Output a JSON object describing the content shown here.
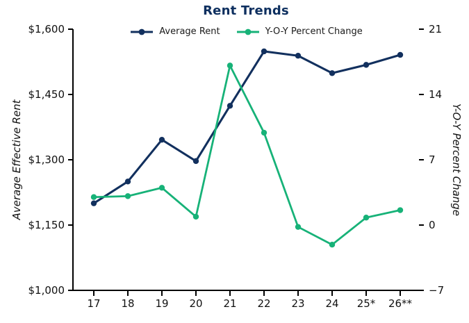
{
  "chart_data": {
    "type": "line",
    "title": "Rent Trends",
    "categories": [
      "17",
      "18",
      "19",
      "20",
      "21",
      "22",
      "23",
      "24",
      "25*",
      "26**"
    ],
    "series": [
      {
        "name": "Average Rent",
        "axis": "left",
        "color": "#12305e",
        "values": [
          1200,
          1250,
          1346,
          1297,
          1424,
          1549,
          1539,
          1499,
          1518,
          1541
        ]
      },
      {
        "name": "Y-O-Y Percent Change",
        "axis": "right",
        "color": "#17b278",
        "values": [
          3.0,
          3.1,
          4.0,
          0.9,
          17.1,
          9.9,
          -0.2,
          -2.1,
          0.8,
          1.6
        ]
      }
    ],
    "left_axis": {
      "label": "Average Effective Rent",
      "range": [
        1000,
        1600
      ],
      "ticks": [
        {
          "value": 1600,
          "label": "$1,600"
        },
        {
          "value": 1450,
          "label": "$1,450"
        },
        {
          "value": 1300,
          "label": "$1,300"
        },
        {
          "value": 1150,
          "label": "$1,150"
        },
        {
          "value": 1000,
          "label": "$1,000"
        }
      ]
    },
    "right_axis": {
      "label": "Y-O-Y Percent Change",
      "range": [
        -7,
        21
      ],
      "ticks": [
        {
          "value": 21,
          "label": "21"
        },
        {
          "value": 14,
          "label": "14"
        },
        {
          "value": 7,
          "label": "7"
        },
        {
          "value": 0,
          "label": "0"
        },
        {
          "value": -7,
          "label": "−7"
        }
      ]
    },
    "legend_position": "top",
    "grid": false,
    "colors": {
      "title": "#0d2f5f",
      "axis_text": "#111111",
      "spine": "#000000",
      "background": "#ffffff"
    }
  }
}
